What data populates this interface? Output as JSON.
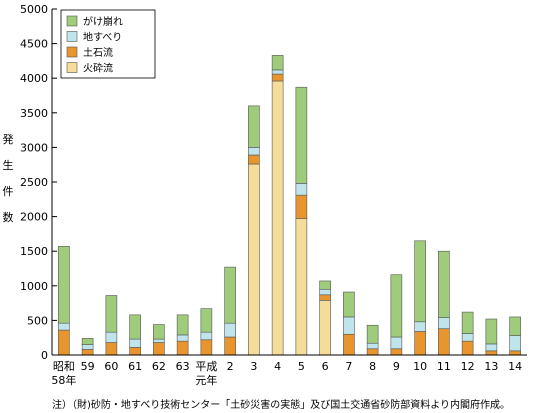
{
  "chart_data": {
    "type": "bar",
    "stacked": true,
    "ylabel": "発生件数",
    "ylim": [
      0,
      5000
    ],
    "yticks": [
      0,
      500,
      1000,
      1500,
      2000,
      2500,
      3000,
      3500,
      4000,
      4500,
      5000
    ],
    "grid": false,
    "legend_placement": "top-left",
    "categories": [
      {
        "line1": "昭和",
        "line2": "58年"
      },
      {
        "line1": "59",
        "line2": ""
      },
      {
        "line1": "60",
        "line2": ""
      },
      {
        "line1": "61",
        "line2": ""
      },
      {
        "line1": "62",
        "line2": ""
      },
      {
        "line1": "63",
        "line2": ""
      },
      {
        "line1": "平成",
        "line2": "元年"
      },
      {
        "line1": "2",
        "line2": ""
      },
      {
        "line1": "3",
        "line2": ""
      },
      {
        "line1": "4",
        "line2": ""
      },
      {
        "line1": "5",
        "line2": ""
      },
      {
        "line1": "6",
        "line2": ""
      },
      {
        "line1": "7",
        "line2": ""
      },
      {
        "line1": "8",
        "line2": ""
      },
      {
        "line1": "9",
        "line2": ""
      },
      {
        "line1": "10",
        "line2": ""
      },
      {
        "line1": "11",
        "line2": ""
      },
      {
        "line1": "12",
        "line2": ""
      },
      {
        "line1": "13",
        "line2": ""
      },
      {
        "line1": "14",
        "line2": ""
      }
    ],
    "series": [
      {
        "name": "火砕流",
        "color": "#f5dc98",
        "values": [
          0,
          0,
          0,
          0,
          0,
          0,
          0,
          0,
          2760,
          3960,
          1970,
          790,
          0,
          0,
          0,
          0,
          0,
          0,
          0,
          0
        ]
      },
      {
        "name": "土石流",
        "color": "#e8952e",
        "values": [
          360,
          80,
          180,
          110,
          180,
          200,
          220,
          260,
          130,
          100,
          340,
          80,
          300,
          90,
          90,
          340,
          380,
          200,
          60,
          60
        ]
      },
      {
        "name": "地すべり",
        "color": "#bfe4ec",
        "values": [
          100,
          70,
          150,
          120,
          50,
          90,
          110,
          200,
          110,
          60,
          170,
          80,
          250,
          80,
          170,
          140,
          160,
          110,
          100,
          220
        ]
      },
      {
        "name": "がけ崩れ",
        "color": "#9fcc7a",
        "values": [
          1110,
          90,
          530,
          350,
          210,
          290,
          340,
          810,
          600,
          210,
          1390,
          120,
          360,
          260,
          900,
          1170,
          960,
          310,
          360,
          270
        ]
      }
    ],
    "legend_order": [
      "がけ崩れ",
      "地すべり",
      "土石流",
      "火砕流"
    ]
  },
  "footnote": "注）（財)砂防・地すべり技術センター「土砂災害の実態」及び国土交通省砂防部資料より内閣府作成。"
}
